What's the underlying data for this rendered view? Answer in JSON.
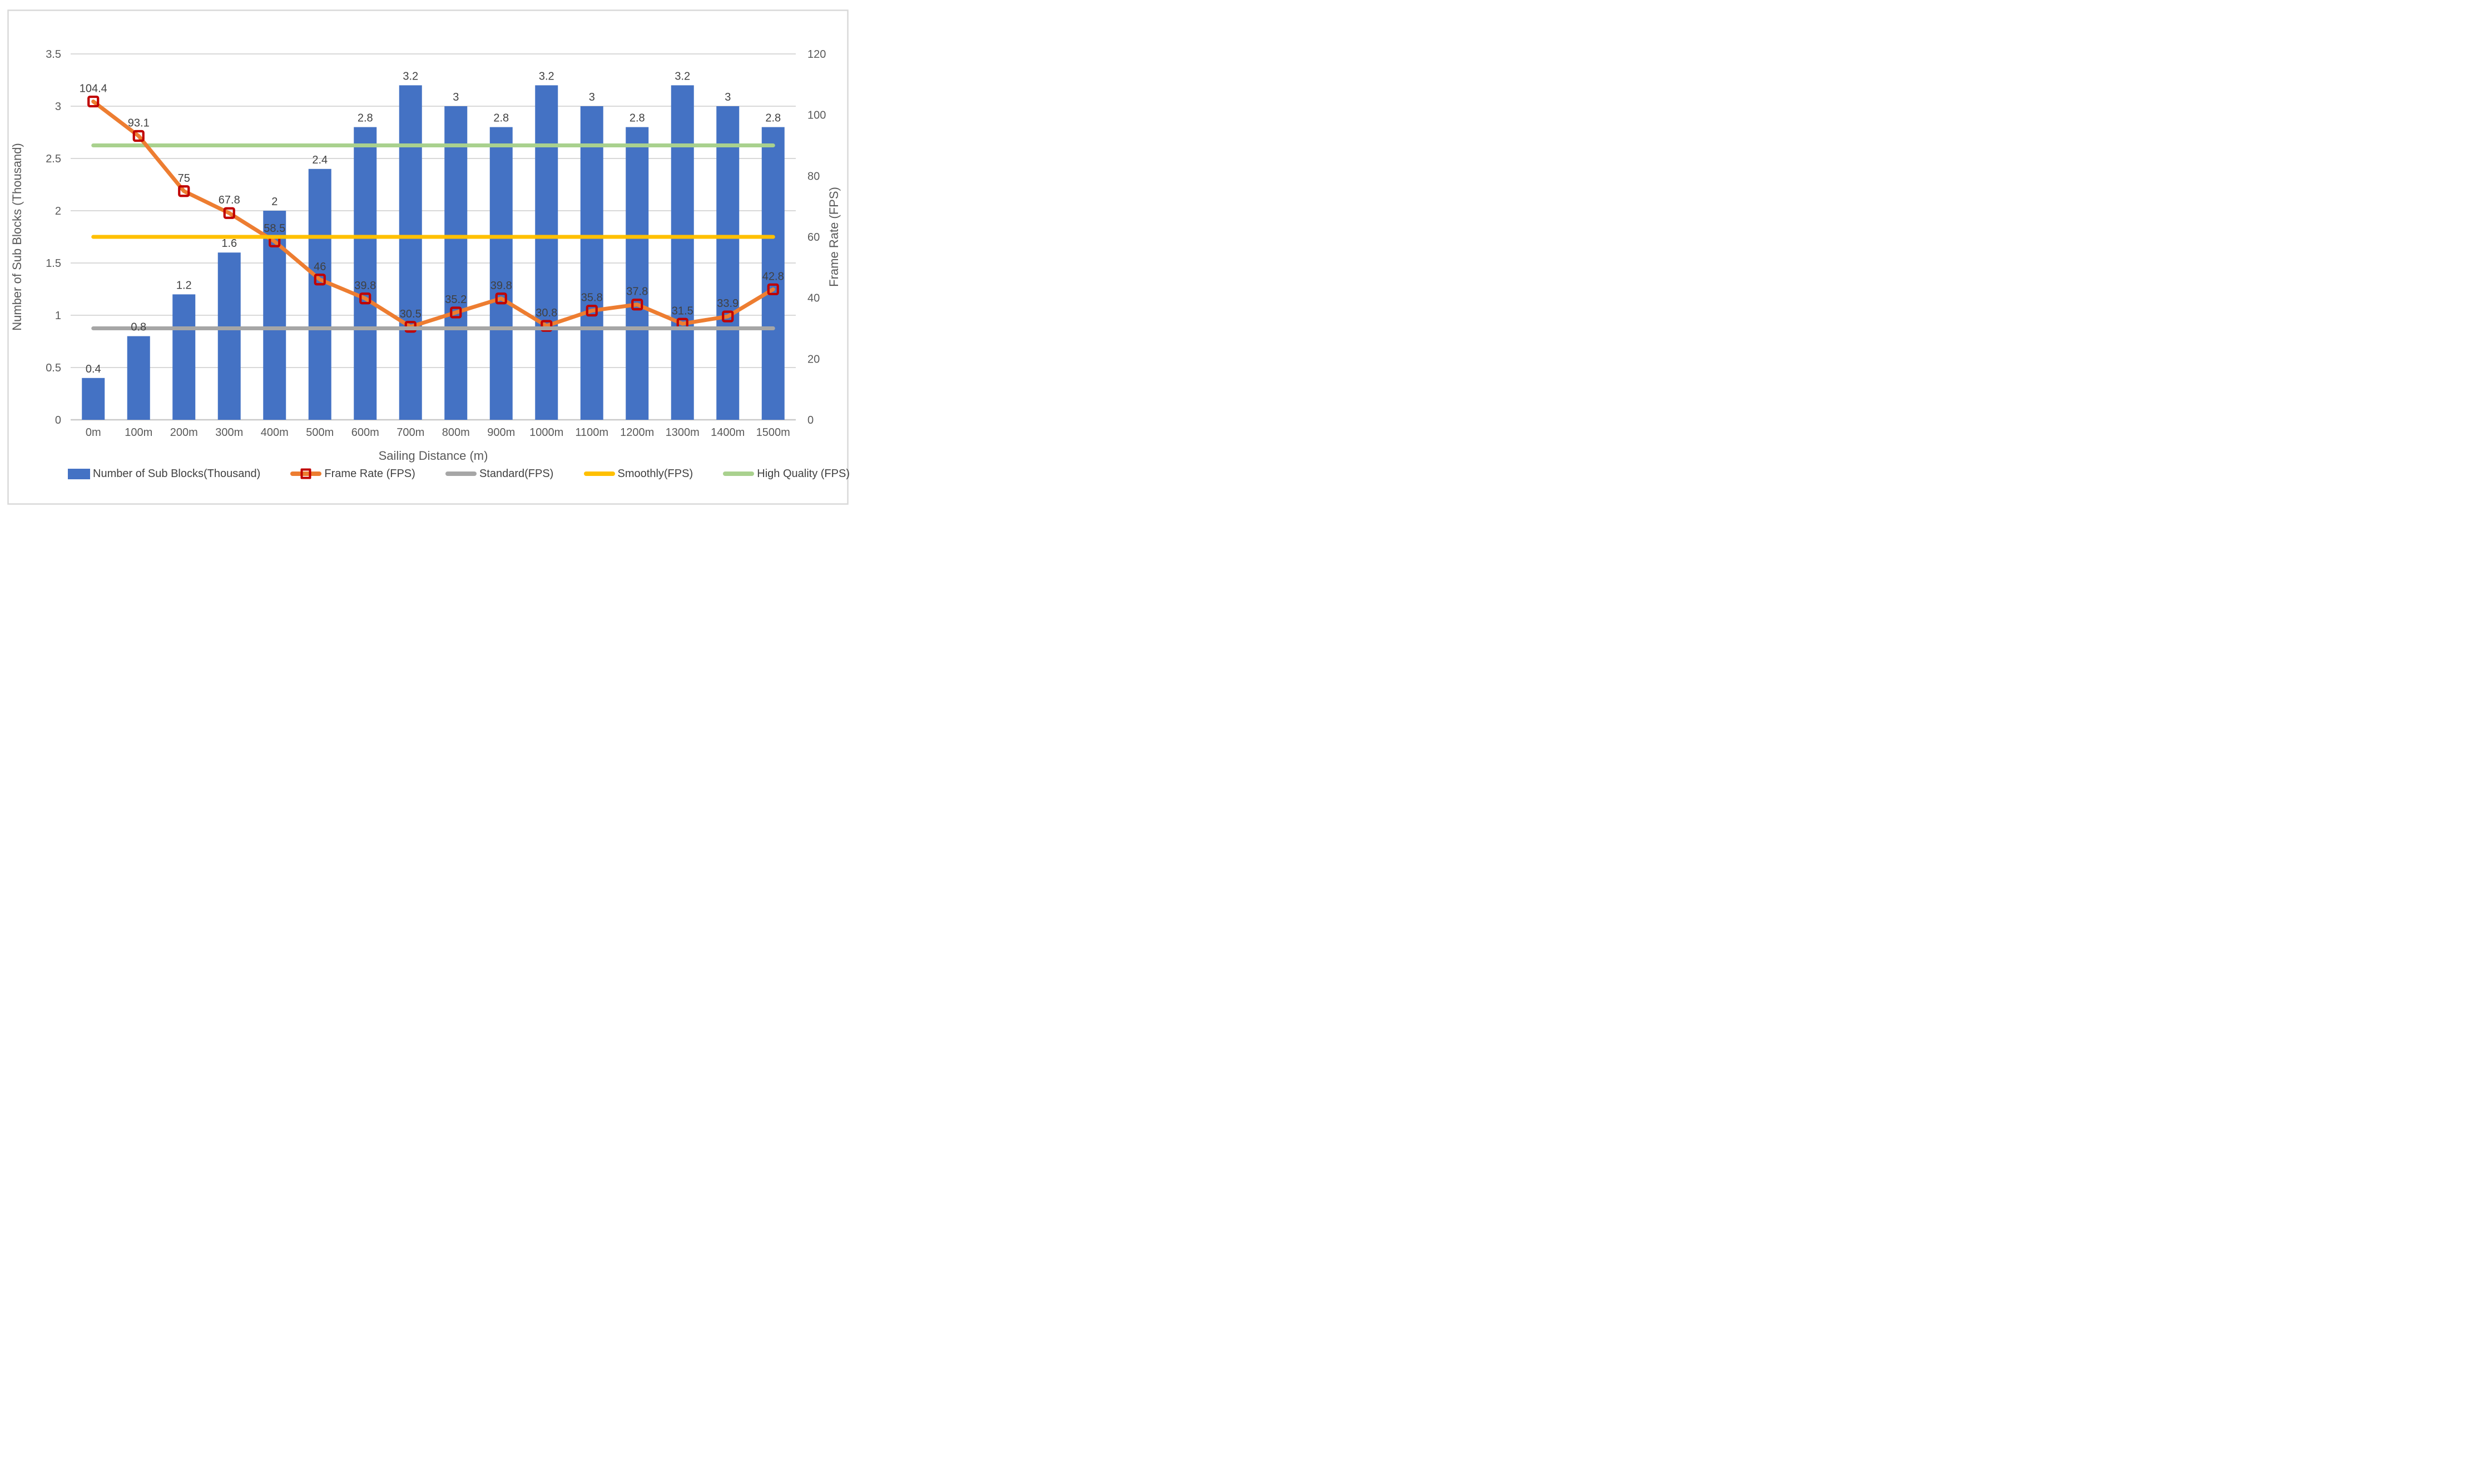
{
  "chart_data": {
    "type": "bar",
    "subtype": "combo-bar-line-dual-axis",
    "title": "",
    "grid": true,
    "legend_position": "bottom",
    "categories": [
      "0m",
      "100m",
      "200m",
      "300m",
      "400m",
      "500m",
      "600m",
      "700m",
      "800m",
      "900m",
      "1000m",
      "1100m",
      "1200m",
      "1300m",
      "1400m",
      "1500m"
    ],
    "series": [
      {
        "slug": "number-of-sub-blocks-thousand",
        "name": "Number of Sub Blocks(Thousand)",
        "type": "bar",
        "axis": "left",
        "color": "#4472C4",
        "data_labels": true,
        "values": [
          0.4,
          0.8,
          1.2,
          1.6,
          2,
          2.4,
          2.8,
          3.2,
          3,
          2.8,
          3.2,
          3,
          2.8,
          3.2,
          3,
          2.8
        ]
      },
      {
        "slug": "frame-rate-fps",
        "name": "Frame Rate (FPS)",
        "type": "line",
        "axis": "right",
        "color": "#ED7D31",
        "marker": {
          "shape": "square",
          "stroke": "#C00000",
          "fill": "none"
        },
        "data_labels": true,
        "values": [
          104.4,
          93.1,
          75,
          67.8,
          58.5,
          46,
          39.8,
          30.5,
          35.2,
          39.8,
          30.8,
          35.8,
          37.8,
          31.5,
          33.9,
          42.8
        ]
      },
      {
        "slug": "standard-fps",
        "name": "Standard(FPS)",
        "type": "line",
        "axis": "right",
        "color": "#A6A6A6",
        "data_labels": false,
        "constant_value": 30
      },
      {
        "slug": "smoothly-fps",
        "name": "Smoothly(FPS)",
        "type": "line",
        "axis": "right",
        "color": "#FFC000",
        "data_labels": false,
        "constant_value": 60
      },
      {
        "slug": "high-quality-fps",
        "name": "High Quality (FPS)",
        "type": "line",
        "axis": "right",
        "color": "#A9D18E",
        "data_labels": false,
        "constant_value": 90
      }
    ],
    "x_axis": {
      "title": "Sailing Distance (m)"
    },
    "left_axis": {
      "title": "Number of Sub Blocks (Thousand)",
      "min": 0,
      "max": 3.5,
      "tick_interval": 0.5,
      "tick_labels": [
        "0",
        "0.5",
        "1",
        "1.5",
        "2",
        "2.5",
        "3",
        "3.5"
      ]
    },
    "right_axis": {
      "title": "Frame Rate (FPS)",
      "min": 0,
      "max": 120,
      "tick_interval": 20,
      "tick_labels": [
        "0",
        "20",
        "40",
        "60",
        "80",
        "100",
        "120"
      ]
    },
    "colors": {
      "background": "#FFFFFF",
      "border": "#D9D9D9",
      "gridline": "#D9D9D9",
      "axis_line": "#C9C9C9",
      "tick_text": "#595959",
      "data_label_text": "#404040",
      "bar": "#4472C4",
      "frame_rate_line": "#ED7D31",
      "marker_stroke": "#C00000",
      "standard_line": "#A6A6A6",
      "smoothly_line": "#FFC000",
      "high_quality_line": "#A9D18E"
    }
  }
}
